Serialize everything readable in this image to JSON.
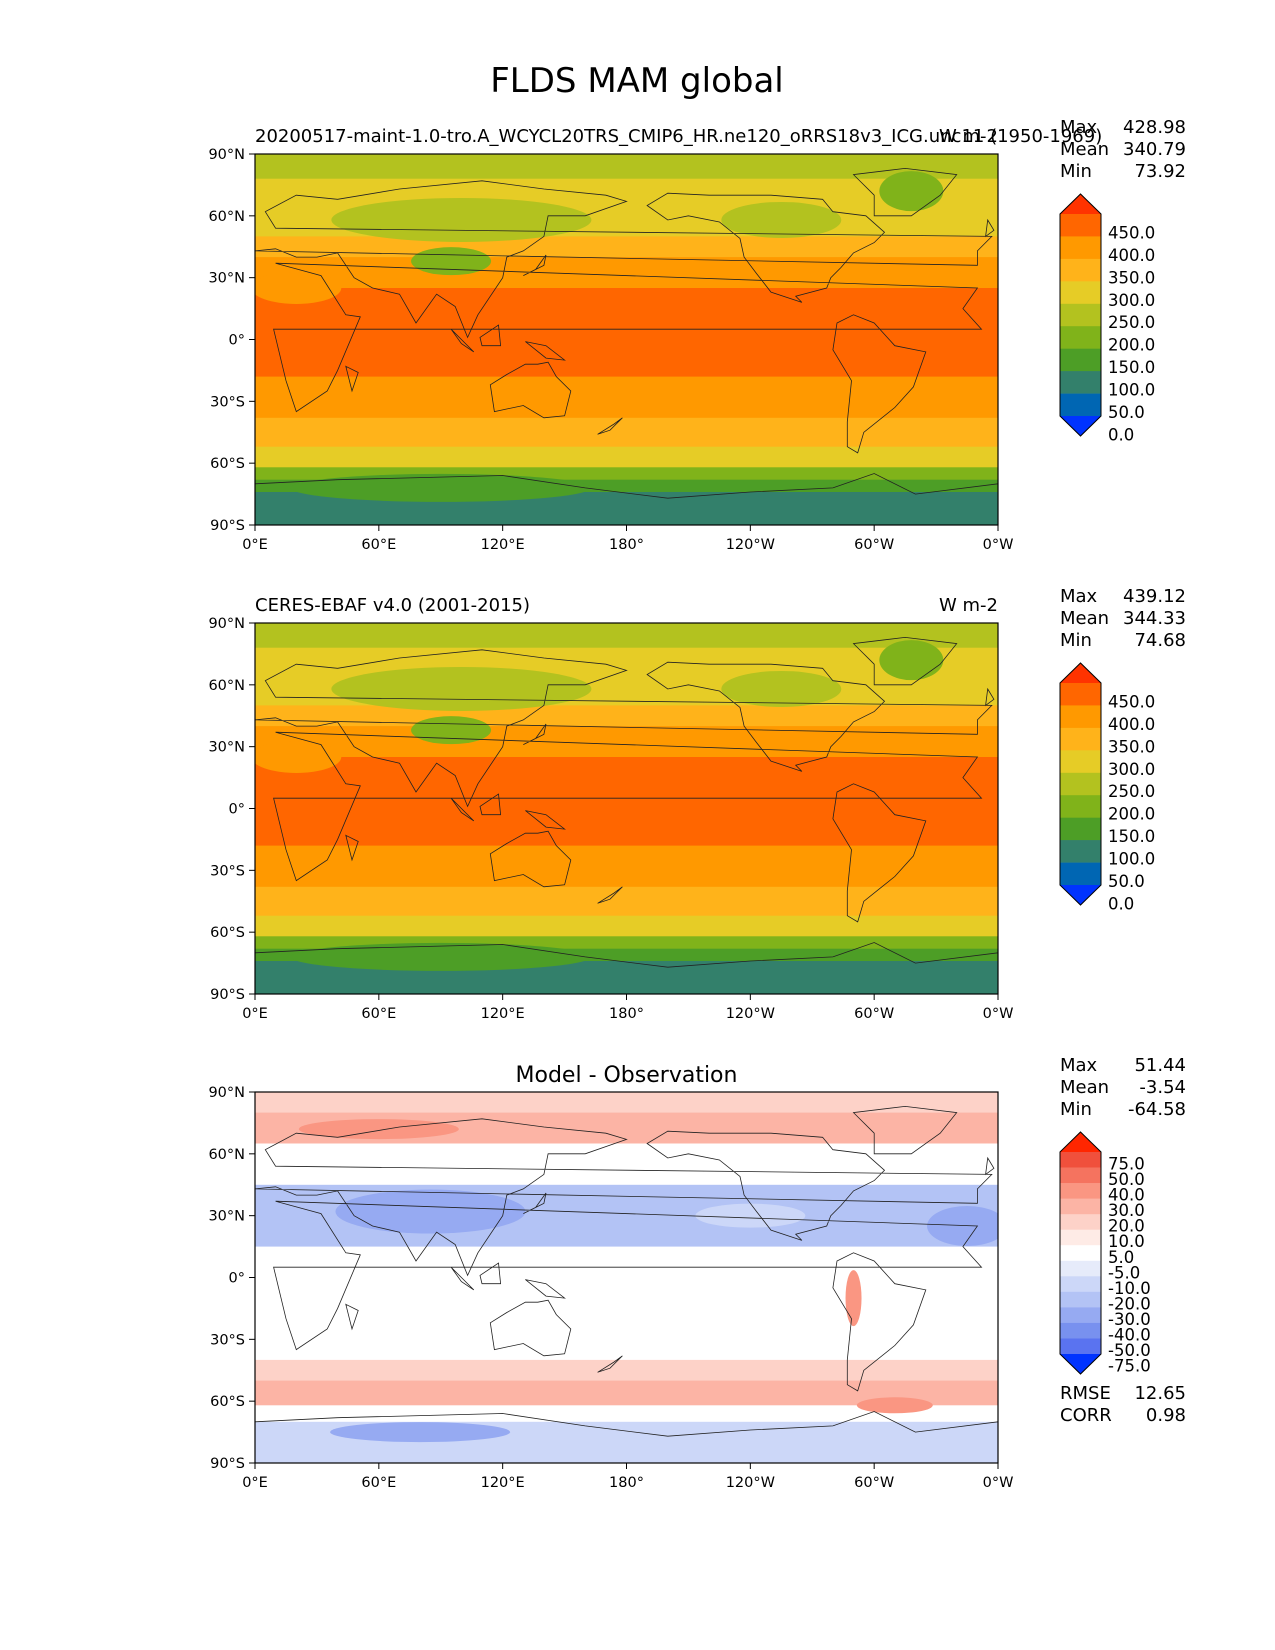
{
  "figure": {
    "title": "FLDS MAM global"
  },
  "axes": {
    "lat_ticks": [
      "90°N",
      "60°N",
      "30°N",
      "0°",
      "30°S",
      "60°S",
      "90°S"
    ],
    "lon_ticks": [
      "0°E",
      "60°E",
      "120°E",
      "180°",
      "120°W",
      "60°W",
      "0°W"
    ]
  },
  "panels": [
    {
      "name": "test",
      "title_left": "20200517-maint-1.0-tro.A_WCYCL20TRS_CMIP6_HR.ne120_oRRS18v3_ICG.unc11 (1950-1969)",
      "title_center": "",
      "title_right": "W m-2",
      "stats": [
        {
          "label": "Max",
          "value": "428.98"
        },
        {
          "label": "Mean",
          "value": "340.79"
        },
        {
          "label": "Min",
          "value": "73.92"
        }
      ],
      "colorbar": {
        "labels": [
          "450.0",
          "400.0",
          "350.0",
          "300.0",
          "250.0",
          "200.0",
          "150.0",
          "100.0",
          "50.0",
          "0.0"
        ],
        "colors": [
          "#ff3300",
          "#ff6600",
          "#ff9900",
          "#ffb31a",
          "#e6cc26",
          "#b3c21f",
          "#80b31a",
          "#4d9e26",
          "#33806b",
          "#0066b3",
          "#0033ff"
        ]
      },
      "field_type": "absolute"
    },
    {
      "name": "reference",
      "title_left": "CERES-EBAF v4.0 (2001-2015)",
      "title_center": "",
      "title_right": "W m-2",
      "stats": [
        {
          "label": "Max",
          "value": "439.12"
        },
        {
          "label": "Mean",
          "value": "344.33"
        },
        {
          "label": "Min",
          "value": "74.68"
        }
      ],
      "colorbar": {
        "labels": [
          "450.0",
          "400.0",
          "350.0",
          "300.0",
          "250.0",
          "200.0",
          "150.0",
          "100.0",
          "50.0",
          "0.0"
        ],
        "colors": [
          "#ff3300",
          "#ff6600",
          "#ff9900",
          "#ffb31a",
          "#e6cc26",
          "#b3c21f",
          "#80b31a",
          "#4d9e26",
          "#33806b",
          "#0066b3",
          "#0033ff"
        ]
      },
      "field_type": "absolute"
    },
    {
      "name": "difference",
      "title_left": "",
      "title_center": "Model - Observation",
      "title_right": "",
      "stats": [
        {
          "label": "Max",
          "value": "51.44"
        },
        {
          "label": "Mean",
          "value": "-3.54"
        },
        {
          "label": "Min",
          "value": "-64.58"
        }
      ],
      "colorbar": {
        "labels": [
          "75.0",
          "50.0",
          "40.0",
          "30.0",
          "20.0",
          "10.0",
          "5.0",
          "-5.0",
          "-10.0",
          "-20.0",
          "-30.0",
          "-40.0",
          "-50.0",
          "-75.0"
        ],
        "colors": [
          "#ff2600",
          "#f0503c",
          "#f5735f",
          "#fa9682",
          "#fcb4a5",
          "#fdd2c8",
          "#feebe6",
          "#ffffff",
          "#e6ebfa",
          "#ccd7f8",
          "#b3c3f5",
          "#96aaf2",
          "#7891ef",
          "#5a73f0",
          "#0033ff"
        ]
      },
      "extra_stats": [
        {
          "label": "RMSE",
          "value": "12.65"
        },
        {
          "label": "CORR",
          "value": "0.98"
        }
      ],
      "field_type": "difference"
    }
  ]
}
